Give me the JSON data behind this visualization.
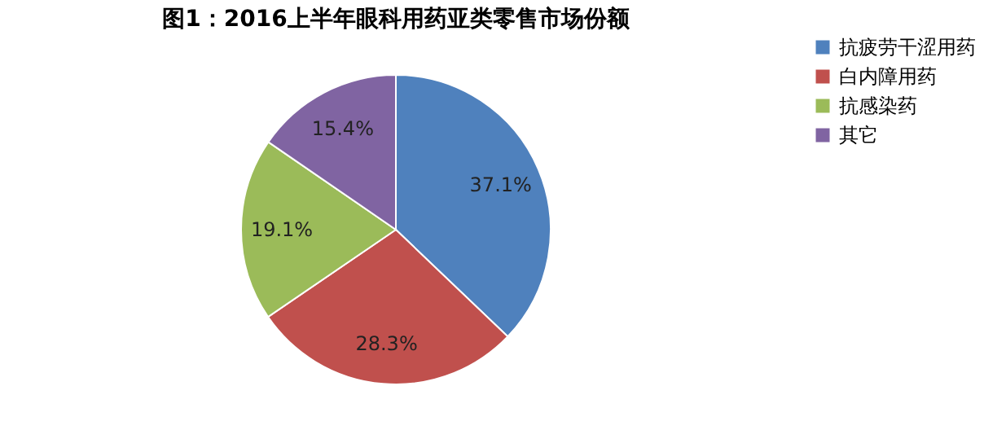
{
  "chart_data": {
    "type": "pie",
    "title": "图1：2016上半年眼科用药亚类零售市场份额",
    "categories": [
      "抗疲劳干涩用药",
      "白内障用药",
      "抗感染药",
      "其它"
    ],
    "values": [
      37.1,
      28.3,
      19.1,
      15.4
    ],
    "colors": [
      "#4f81bd",
      "#c0504d",
      "#9bbb59",
      "#8064a2"
    ],
    "value_labels": [
      "37.1%",
      "28.3%",
      "19.1%",
      "15.4%"
    ],
    "legend": "right"
  }
}
